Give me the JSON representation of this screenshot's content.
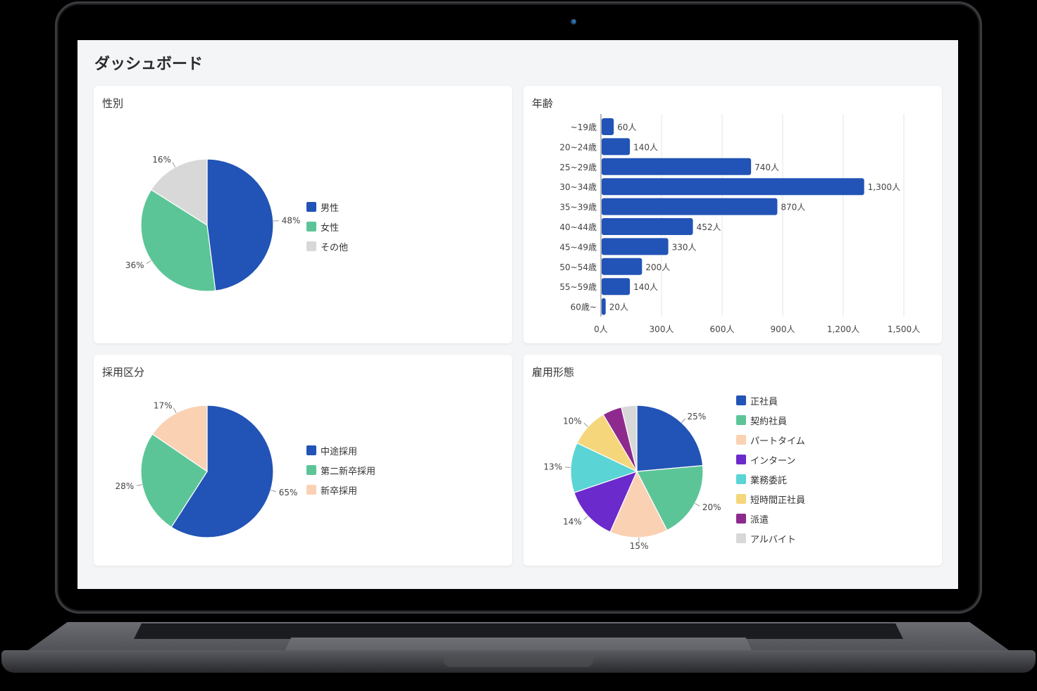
{
  "page": {
    "title": "ダッシュボード"
  },
  "cards": {
    "gender": {
      "title": "性別"
    },
    "age": {
      "title": "年齢"
    },
    "recruitment": {
      "title": "採用区分"
    },
    "employment": {
      "title": "雇用形態"
    }
  },
  "chart_data": [
    {
      "id": "gender",
      "type": "pie",
      "title": "性別",
      "labels": [
        "男性",
        "女性",
        "その他"
      ],
      "values": [
        48,
        36,
        16
      ],
      "value_labels": [
        "48%",
        "36%",
        "16%"
      ],
      "colors": [
        "#2253b6",
        "#5cc597",
        "#d8d8d8"
      ],
      "legend_position": "right"
    },
    {
      "id": "age",
      "type": "bar",
      "orientation": "horizontal",
      "title": "年齢",
      "categories": [
        "~19歳",
        "20~24歳",
        "25~29歳",
        "30~34歳",
        "35~39歳",
        "40~44歳",
        "45~49歳",
        "50~54歳",
        "55~59歳",
        "60歳~"
      ],
      "values": [
        60,
        140,
        740,
        1300,
        870,
        452,
        330,
        200,
        140,
        20
      ],
      "value_labels": [
        "60人",
        "140人",
        "740人",
        "1,300人",
        "870人",
        "452人",
        "330人",
        "200人",
        "140人",
        "20人"
      ],
      "xticks": [
        "0人",
        "300人",
        "600人",
        "900人",
        "1,200人",
        "1,500人"
      ],
      "xlim": [
        0,
        1600
      ],
      "grid": true,
      "color": "#2253b6"
    },
    {
      "id": "recruitment",
      "type": "pie",
      "title": "採用区分",
      "labels": [
        "中途採用",
        "第二新卒採用",
        "新卒採用"
      ],
      "values": [
        65,
        28,
        17
      ],
      "value_labels": [
        "65%",
        "28%",
        "17%"
      ],
      "colors": [
        "#2253b6",
        "#5cc597",
        "#fbd1b4"
      ],
      "legend_position": "right"
    },
    {
      "id": "employment",
      "type": "pie",
      "title": "雇用形態",
      "labels": [
        "正社員",
        "契約社員",
        "パートタイム",
        "インターン",
        "業務委託",
        "短時間正社員",
        "派遣",
        "アルバイト"
      ],
      "values": [
        25,
        20,
        15,
        14,
        13,
        10,
        5,
        4
      ],
      "value_labels": [
        "25%",
        "20%",
        "15%",
        "14%",
        "13%",
        "10%",
        "",
        ""
      ],
      "colors": [
        "#2253b6",
        "#5cc597",
        "#fbd1b4",
        "#6b2acb",
        "#5ad4d4",
        "#f5d67a",
        "#8e2a8e",
        "#d8d8d8"
      ],
      "legend_position": "right"
    }
  ]
}
